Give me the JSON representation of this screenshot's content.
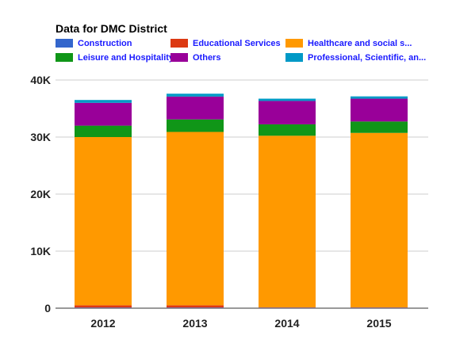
{
  "chart_data": {
    "type": "bar",
    "stacked": true,
    "title": "Data for DMC District",
    "categories": [
      "2012",
      "2013",
      "2014",
      "2015"
    ],
    "series": [
      {
        "name": "Construction",
        "color": "#3366cc",
        "values": [
          100,
          100,
          80,
          80
        ]
      },
      {
        "name": "Educational Services",
        "color": "#dc3912",
        "values": [
          400,
          400,
          50,
          50
        ]
      },
      {
        "name": "Healthcare and social s...",
        "color": "#ff9900",
        "values": [
          29500,
          30400,
          30100,
          30600
        ]
      },
      {
        "name": "Leisure and Hospitality",
        "color": "#109618",
        "values": [
          2000,
          2200,
          2000,
          2000
        ]
      },
      {
        "name": "Others",
        "color": "#990099",
        "values": [
          4000,
          4000,
          4100,
          4000
        ]
      },
      {
        "name": "Professional, Scientific, an...",
        "color": "#0099c6",
        "values": [
          500,
          500,
          400,
          400
        ]
      }
    ],
    "ylim": [
      0,
      40000
    ],
    "y_ticks": [
      {
        "value": 0,
        "label": "0"
      },
      {
        "value": 10000,
        "label": "10K"
      },
      {
        "value": 20000,
        "label": "20K"
      },
      {
        "value": 30000,
        "label": "30K"
      },
      {
        "value": 40000,
        "label": "40K"
      }
    ],
    "xlabel": "",
    "ylabel": "",
    "grid": true,
    "legend_position": "top"
  }
}
